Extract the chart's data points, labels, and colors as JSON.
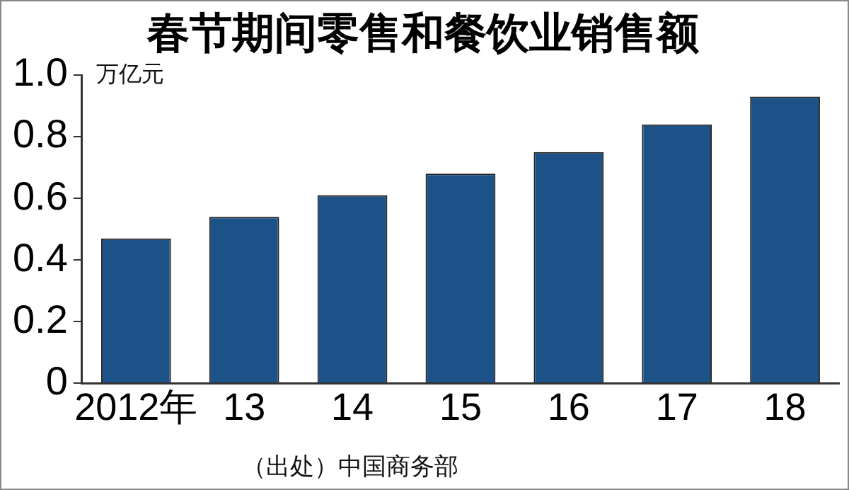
{
  "chart_data": {
    "type": "bar",
    "title": "春节期间零售和餐饮业销售额",
    "ylabel": "万亿元",
    "categories": [
      "2012年",
      "13",
      "14",
      "15",
      "16",
      "17",
      "18"
    ],
    "values": [
      0.47,
      0.54,
      0.61,
      0.68,
      0.75,
      0.84,
      0.93
    ],
    "color": "#1d5288",
    "ylim": [
      0,
      1.0
    ],
    "yticks": [
      0,
      0.2,
      0.4,
      0.6,
      0.8,
      {
        "value": 1.0,
        "label": "1.0"
      }
    ],
    "grid": false,
    "legend": false,
    "annotations": [
      "（出处）中国商务部"
    ]
  }
}
